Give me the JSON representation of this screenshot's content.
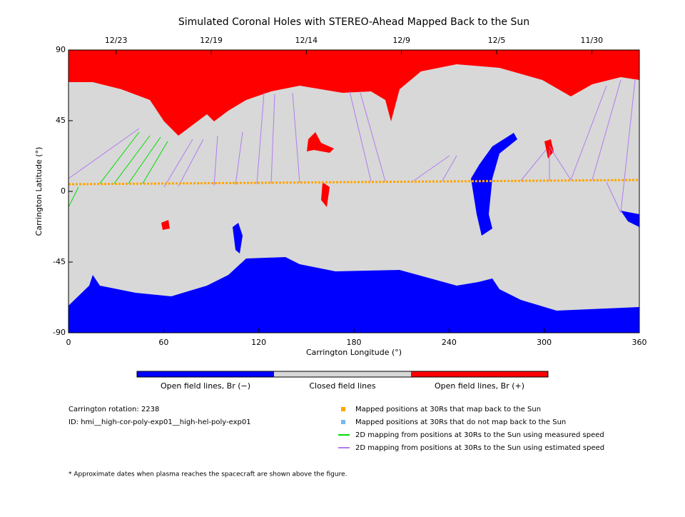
{
  "chart_data": {
    "type": "map",
    "title": "Simulated Coronal Holes with STEREO-Ahead Mapped Back to the Sun",
    "x_label": "Carrington Longitude (°)",
    "y_label": "Carrington Latitude (°)",
    "xlim": [
      0,
      360
    ],
    "ylim": [
      -90,
      90
    ],
    "xticks": [
      0,
      60,
      120,
      180,
      240,
      300,
      360
    ],
    "yticks": [
      -90,
      -45,
      0,
      45,
      90
    ],
    "top_ticks": [
      {
        "value": 30,
        "label": "12/23"
      },
      {
        "value": 90,
        "label": "12/19"
      },
      {
        "value": 150,
        "label": "12/14"
      },
      {
        "value": 210,
        "label": "12/9"
      },
      {
        "value": 270,
        "label": "12/5"
      },
      {
        "value": 330,
        "label": "11/30"
      }
    ],
    "colorbar": [
      {
        "label": "Open field lines, Br (−)",
        "color": "#0000ff"
      },
      {
        "label": "Closed field lines",
        "color": "#d8d8d8"
      },
      {
        "label": "Open field lines, Br (+)",
        "color": "#ff0000"
      }
    ],
    "info": [
      "Carrington rotation: 2238",
      "ID: hmi__high-cor-poly-exp01__high-hel-poly-exp01"
    ],
    "legend": [
      {
        "label": "Mapped positions at 30Rs that map back to the Sun",
        "color": "#ffa500",
        "marker": "square"
      },
      {
        "label": "Mapped positions at 30Rs that do not map back to the Sun",
        "color": "#7ab8f0",
        "marker": "square"
      },
      {
        "label": "2D mapping from positions at 30Rs to the Sun using measured speed",
        "color": "#00dd00",
        "marker": "line"
      },
      {
        "label": "2D mapping from positions at 30Rs to the Sun using estimated speed",
        "color": "#b07cf0",
        "marker": "line"
      }
    ],
    "footnote": "* Approximate dates when plasma reaches the spacecraft are shown above the figure."
  }
}
